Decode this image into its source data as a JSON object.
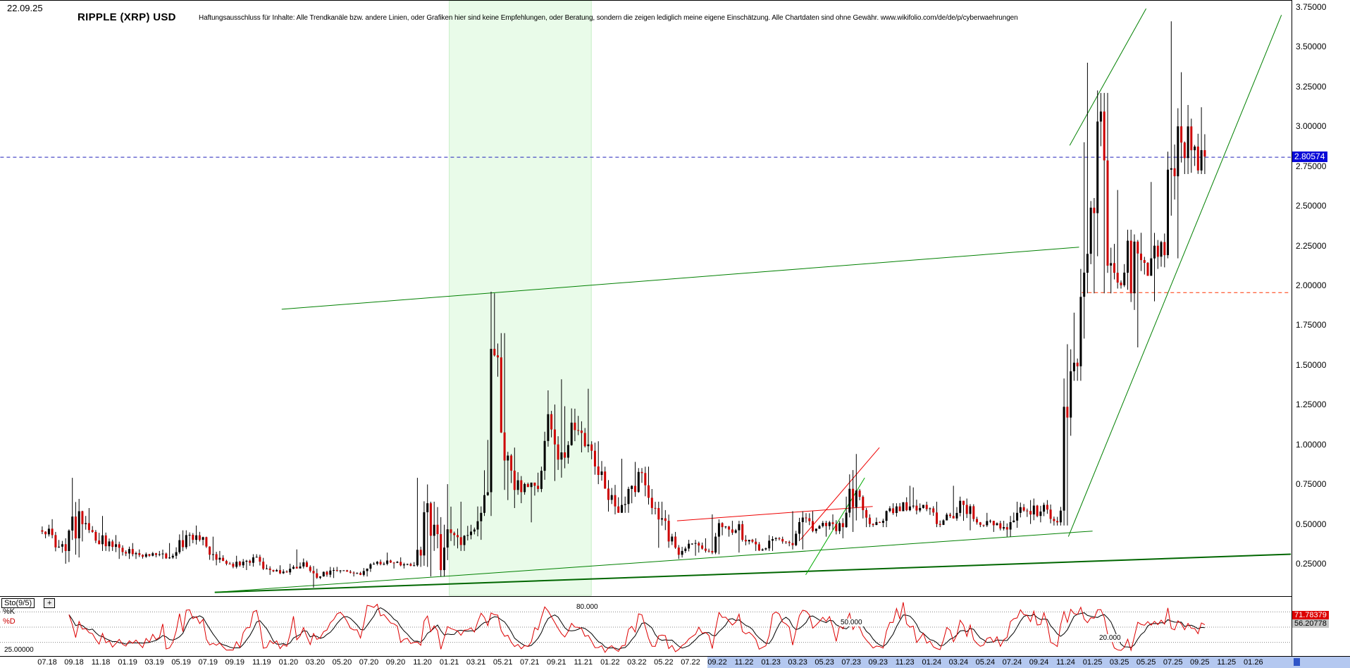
{
  "header": {
    "date": "22.09.25",
    "title": "RIPPLE (XRP) USD",
    "disclaimer": "Haftungsausschluss für Inhalte: Alle Trendkanäle bzw. andere Linien, oder Grafiken hier sind keine Empfehlungen, oder Beratung, sondern die zeigen lediglich meine eigene Einschätzung. Alle Chartdaten sind ohne Gewähr.  www.wikifolio.com/de/de/p/cyberwaehrungen"
  },
  "current_price": {
    "value": "2.80574",
    "bg": "#0a0ad8"
  },
  "price_axis": {
    "labels": [
      "3.75000",
      "3.50000",
      "3.25000",
      "3.00000",
      "2.75000",
      "2.50000",
      "2.25000",
      "2.00000",
      "1.75000",
      "1.50000",
      "1.25000",
      "1.00000",
      "0.75000",
      "0.50000",
      "0.25000"
    ]
  },
  "x_axis": {
    "labels": [
      "07.18",
      "09.18",
      "11.18",
      "01.19",
      "03.19",
      "05.19",
      "07.19",
      "09.19",
      "11.19",
      "01.20",
      "03.20",
      "05.20",
      "07.20",
      "09.20",
      "11.20",
      "01.21",
      "03.21",
      "05.21",
      "07.21",
      "09.21",
      "11.21",
      "01.22",
      "03.22",
      "05.22",
      "07.22",
      "09.22",
      "11.22",
      "01.23",
      "03.23",
      "05.23",
      "07.23",
      "09.23",
      "11.23",
      "01.24",
      "03.24",
      "05.24",
      "07.24",
      "09.24",
      "11.24",
      "01.25",
      "03.25",
      "05.25",
      "07.25",
      "09.25",
      "11.25",
      "01.26"
    ],
    "highlight_start_index": 25,
    "highlight_color": "#b4c8f0"
  },
  "chart_data": {
    "type": "candlestick",
    "title": "RIPPLE (XRP) USD",
    "ylabel": "USD",
    "x_interval": "monthly",
    "y_max": 3.75,
    "y_min": 0.25,
    "y_step": 0.25,
    "last_price": 2.80574,
    "months": [
      "07.18",
      "08.18",
      "09.18",
      "10.18",
      "11.18",
      "12.18",
      "01.19",
      "02.19",
      "03.19",
      "04.19",
      "05.19",
      "06.19",
      "07.19",
      "08.19",
      "09.19",
      "10.19",
      "11.19",
      "12.19",
      "01.20",
      "02.20",
      "03.20",
      "04.20",
      "05.20",
      "06.20",
      "07.20",
      "08.20",
      "09.20",
      "10.20",
      "11.20",
      "12.20",
      "01.21",
      "02.21",
      "03.21",
      "04.21",
      "05.21",
      "06.21",
      "07.21",
      "08.21",
      "09.21",
      "10.21",
      "11.21",
      "12.21",
      "01.22",
      "02.22",
      "03.22",
      "04.22",
      "05.22",
      "06.22",
      "07.22",
      "08.22",
      "09.22",
      "10.22",
      "11.22",
      "12.22",
      "01.23",
      "02.23",
      "03.23",
      "04.23",
      "05.23",
      "06.23",
      "07.23",
      "08.23",
      "09.23",
      "10.23",
      "11.23",
      "12.23",
      "01.24",
      "02.24",
      "03.24",
      "04.24",
      "05.24",
      "06.24",
      "07.24",
      "08.24",
      "09.24",
      "10.24",
      "11.24",
      "12.24",
      "01.25",
      "02.25",
      "03.25",
      "04.25",
      "05.25",
      "06.25",
      "07.25",
      "08.25",
      "09.25"
    ],
    "ohlc_format": "[open,high,low,close]",
    "ohlc": [
      [
        0.46,
        0.53,
        0.41,
        0.43
      ],
      [
        0.43,
        0.45,
        0.25,
        0.33
      ],
      [
        0.33,
        0.79,
        0.26,
        0.58
      ],
      [
        0.58,
        0.6,
        0.39,
        0.45
      ],
      [
        0.45,
        0.55,
        0.33,
        0.36
      ],
      [
        0.36,
        0.43,
        0.28,
        0.35
      ],
      [
        0.35,
        0.38,
        0.28,
        0.31
      ],
      [
        0.31,
        0.34,
        0.28,
        0.31
      ],
      [
        0.31,
        0.33,
        0.29,
        0.31
      ],
      [
        0.31,
        0.38,
        0.28,
        0.3
      ],
      [
        0.3,
        0.46,
        0.28,
        0.43
      ],
      [
        0.43,
        0.49,
        0.36,
        0.4
      ],
      [
        0.4,
        0.42,
        0.27,
        0.31
      ],
      [
        0.31,
        0.33,
        0.24,
        0.25
      ],
      [
        0.25,
        0.3,
        0.22,
        0.24
      ],
      [
        0.24,
        0.31,
        0.21,
        0.29
      ],
      [
        0.29,
        0.31,
        0.21,
        0.22
      ],
      [
        0.22,
        0.24,
        0.18,
        0.19
      ],
      [
        0.19,
        0.25,
        0.18,
        0.23
      ],
      [
        0.23,
        0.34,
        0.22,
        0.23
      ],
      [
        0.23,
        0.24,
        0.1,
        0.17
      ],
      [
        0.17,
        0.23,
        0.16,
        0.21
      ],
      [
        0.21,
        0.23,
        0.19,
        0.2
      ],
      [
        0.2,
        0.21,
        0.17,
        0.18
      ],
      [
        0.18,
        0.26,
        0.17,
        0.25
      ],
      [
        0.25,
        0.32,
        0.24,
        0.27
      ],
      [
        0.27,
        0.29,
        0.22,
        0.24
      ],
      [
        0.24,
        0.26,
        0.22,
        0.24
      ],
      [
        0.24,
        0.79,
        0.23,
        0.63
      ],
      [
        0.63,
        0.64,
        0.17,
        0.21
      ],
      [
        0.21,
        0.75,
        0.17,
        0.43
      ],
      [
        0.43,
        0.64,
        0.33,
        0.43
      ],
      [
        0.43,
        0.61,
        0.4,
        0.57
      ],
      [
        0.57,
        1.96,
        0.55,
        1.56
      ],
      [
        1.56,
        1.7,
        0.65,
        0.93
      ],
      [
        0.93,
        0.98,
        0.6,
        0.7
      ],
      [
        0.7,
        0.76,
        0.51,
        0.74
      ],
      [
        0.74,
        1.34,
        0.7,
        1.19
      ],
      [
        1.19,
        1.41,
        0.77,
        0.95
      ],
      [
        0.95,
        1.24,
        0.85,
        1.09
      ],
      [
        1.09,
        1.35,
        0.95,
        1.0
      ],
      [
        1.0,
        1.02,
        0.75,
        0.83
      ],
      [
        0.83,
        0.86,
        0.56,
        0.61
      ],
      [
        0.61,
        0.91,
        0.57,
        0.72
      ],
      [
        0.72,
        0.89,
        0.63,
        0.82
      ],
      [
        0.82,
        0.86,
        0.56,
        0.6
      ],
      [
        0.6,
        0.64,
        0.35,
        0.39
      ],
      [
        0.39,
        0.45,
        0.28,
        0.33
      ],
      [
        0.33,
        0.4,
        0.3,
        0.38
      ],
      [
        0.38,
        0.41,
        0.32,
        0.33
      ],
      [
        0.33,
        0.56,
        0.31,
        0.48
      ],
      [
        0.48,
        0.52,
        0.42,
        0.46
      ],
      [
        0.46,
        0.52,
        0.32,
        0.4
      ],
      [
        0.4,
        0.41,
        0.33,
        0.34
      ],
      [
        0.34,
        0.43,
        0.33,
        0.41
      ],
      [
        0.41,
        0.42,
        0.36,
        0.38
      ],
      [
        0.38,
        0.58,
        0.34,
        0.54
      ],
      [
        0.54,
        0.58,
        0.44,
        0.47
      ],
      [
        0.47,
        0.52,
        0.42,
        0.51
      ],
      [
        0.51,
        0.56,
        0.41,
        0.48
      ],
      [
        0.48,
        0.94,
        0.45,
        0.71
      ],
      [
        0.71,
        0.72,
        0.48,
        0.5
      ],
      [
        0.5,
        0.54,
        0.48,
        0.52
      ],
      [
        0.52,
        0.63,
        0.48,
        0.61
      ],
      [
        0.61,
        0.74,
        0.58,
        0.61
      ],
      [
        0.61,
        0.73,
        0.56,
        0.62
      ],
      [
        0.62,
        0.64,
        0.48,
        0.5
      ],
      [
        0.5,
        0.57,
        0.48,
        0.55
      ],
      [
        0.55,
        0.74,
        0.52,
        0.62
      ],
      [
        0.62,
        0.66,
        0.46,
        0.51
      ],
      [
        0.51,
        0.57,
        0.48,
        0.52
      ],
      [
        0.52,
        0.52,
        0.45,
        0.48
      ],
      [
        0.48,
        0.64,
        0.42,
        0.57
      ],
      [
        0.57,
        0.65,
        0.5,
        0.56
      ],
      [
        0.56,
        0.66,
        0.51,
        0.62
      ],
      [
        0.62,
        0.65,
        0.49,
        0.51
      ],
      [
        0.51,
        1.63,
        0.49,
        1.46
      ],
      [
        1.46,
        2.9,
        1.4,
        2.08
      ],
      [
        2.08,
        3.4,
        1.95,
        3.03
      ],
      [
        3.03,
        3.21,
        1.95,
        2.14
      ],
      [
        2.14,
        2.6,
        1.98,
        2.08
      ],
      [
        2.08,
        2.35,
        1.61,
        2.2
      ],
      [
        2.2,
        2.65,
        2.06,
        2.17
      ],
      [
        2.17,
        2.33,
        1.9,
        2.19
      ],
      [
        2.19,
        3.66,
        2.17,
        3.0
      ],
      [
        3.0,
        3.34,
        2.7,
        2.85
      ],
      [
        2.85,
        3.12,
        2.7,
        2.81
      ]
    ],
    "shaded_band": {
      "label_from": "01.21",
      "label_to": "11.21",
      "from_index": 30,
      "to_index": 40.6,
      "fill": "#e9fbe9",
      "border": "#c6eec6"
    },
    "lines": [
      {
        "name": "current-price-line",
        "color": "#2222bb",
        "style": "dashed",
        "width": 1,
        "points": [
          [
            -3.5,
            2.80574
          ],
          [
            92.8,
            2.80574
          ]
        ]
      },
      {
        "name": "red-dashed-level",
        "color": "#ff3300",
        "style": "dashed",
        "width": 1,
        "points": [
          [
            77.2,
            1.955
          ],
          [
            92.8,
            1.955
          ]
        ]
      },
      {
        "name": "long-green-trendline",
        "color": "#008000",
        "width": 1,
        "points": [
          [
            17.5,
            1.85
          ],
          [
            77,
            2.24
          ]
        ]
      },
      {
        "name": "support-trendline-shallow",
        "color": "#006600",
        "width": 2,
        "points": [
          [
            12.5,
            0.07
          ],
          [
            92.8,
            0.31
          ]
        ]
      },
      {
        "name": "support-trendline-steep",
        "color": "#008000",
        "width": 1,
        "points": [
          [
            12.5,
            0.07
          ],
          [
            78,
            0.455
          ]
        ]
      },
      {
        "name": "rally-channel-lower",
        "color": "#008000",
        "width": 1,
        "points": [
          [
            76.2,
            0.42
          ],
          [
            92.1,
            3.7
          ]
        ]
      },
      {
        "name": "rally-channel-upper",
        "color": "#008000",
        "width": 1,
        "points": [
          [
            76.3,
            2.88
          ],
          [
            82,
            3.74
          ]
        ]
      },
      {
        "name": "red-resistance-line",
        "color": "#ee0000",
        "width": 1,
        "points": [
          [
            47,
            0.52
          ],
          [
            61.6,
            0.61
          ]
        ]
      },
      {
        "name": "red-rising-line",
        "color": "#ee0000",
        "width": 1,
        "points": [
          [
            56.2,
            0.4
          ],
          [
            62.1,
            0.98
          ]
        ]
      },
      {
        "name": "green-cross-line",
        "color": "#00aa00",
        "width": 1,
        "points": [
          [
            56.6,
            0.18
          ],
          [
            61,
            0.79
          ]
        ]
      }
    ],
    "stochastic": {
      "label": "Sto(9/5)",
      "plus_label": "+",
      "period": 9,
      "smooth": 5,
      "k_label": "%K",
      "d_label": "%D",
      "k_value": "71.78379",
      "d_value": "56.20778",
      "k_color": "#dd0000",
      "d_color": "#000000",
      "levels": [
        80,
        50,
        20
      ],
      "level_labels": [
        "80.000",
        "50.000",
        "20.000"
      ],
      "left_scale_label": "25.00000"
    }
  }
}
